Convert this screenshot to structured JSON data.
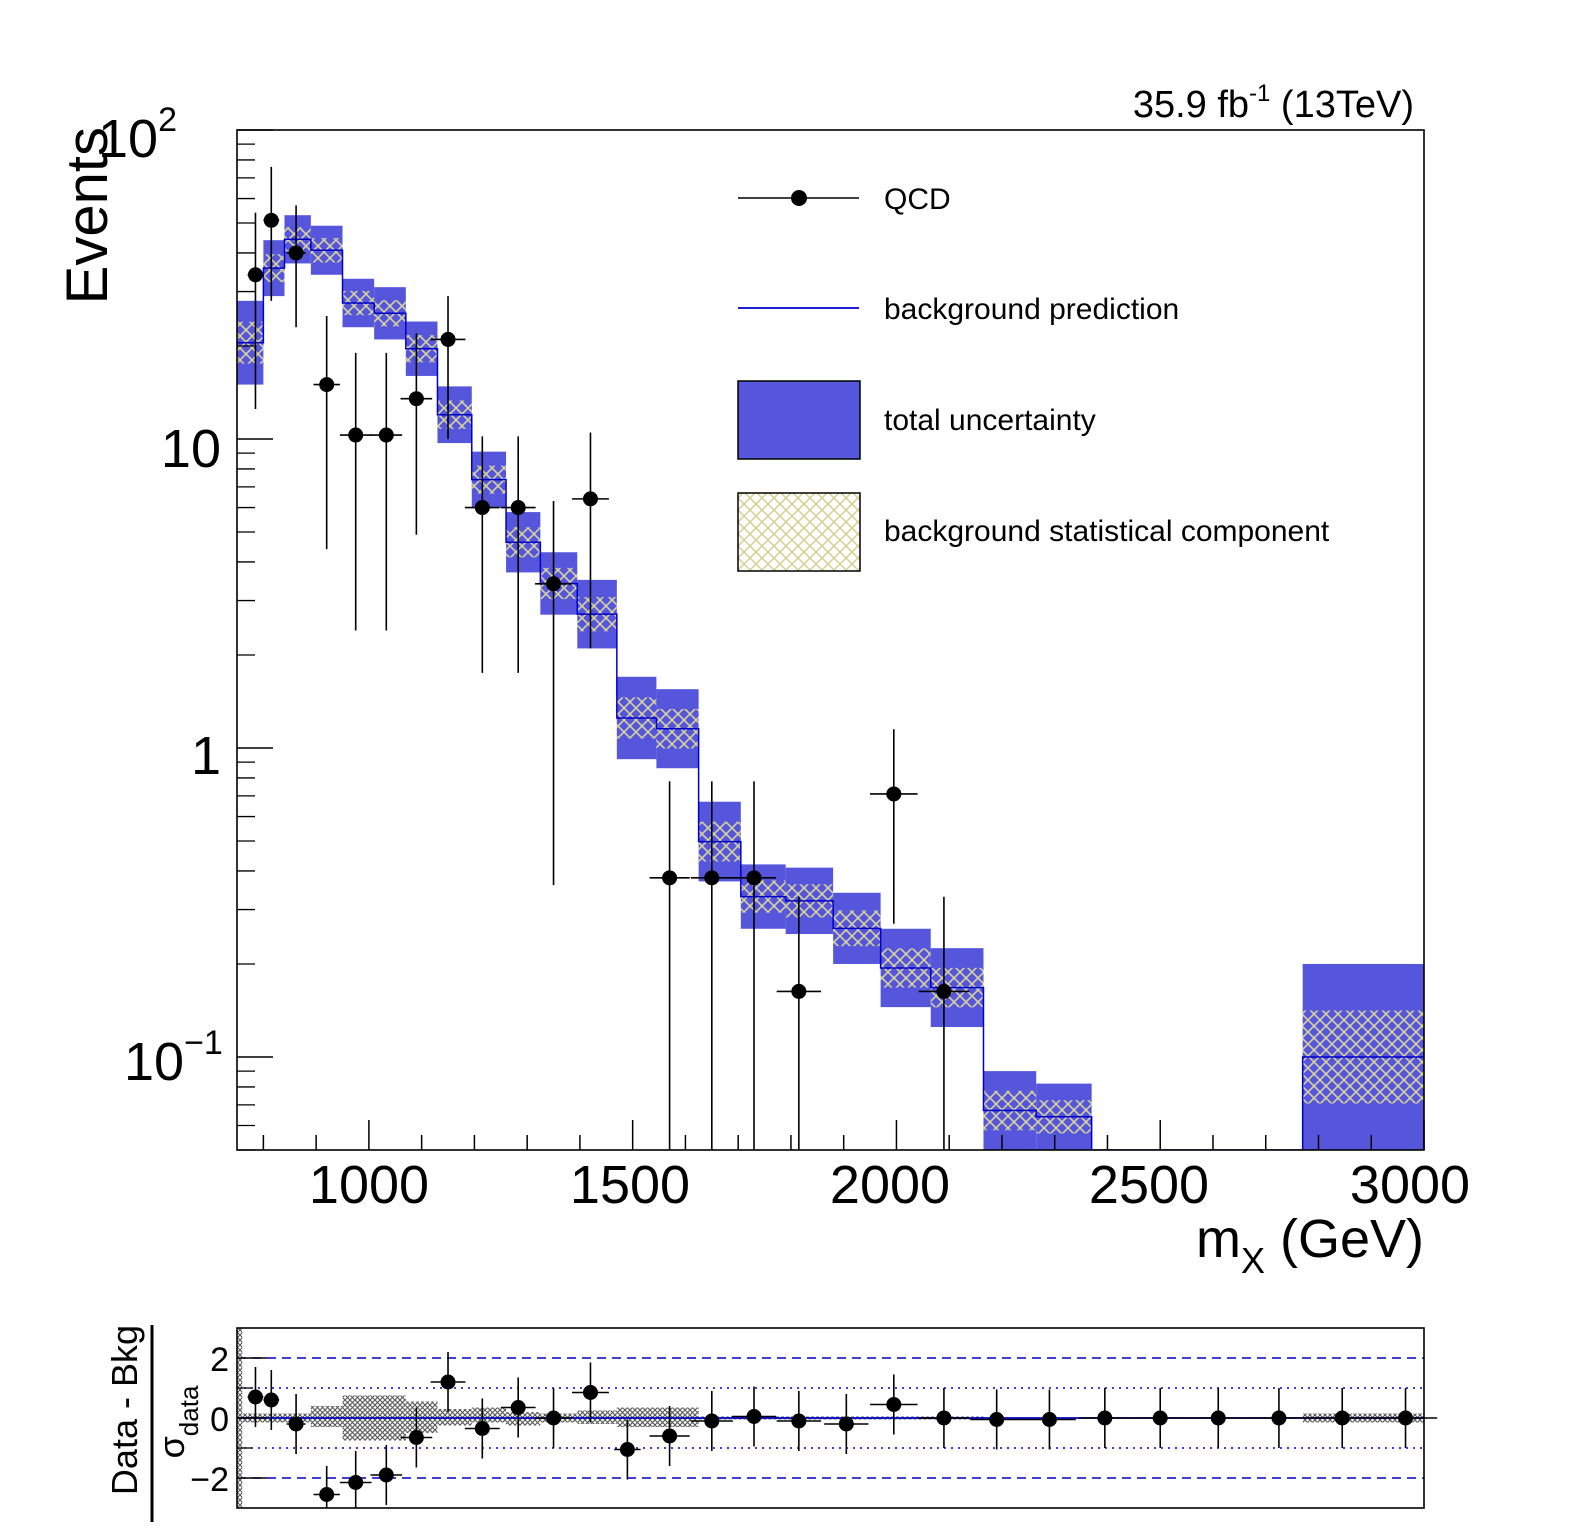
{
  "chart_data": [
    {
      "type": "scatter",
      "lumi_label": "35.9 fb",
      "lumi_sup": "-1",
      "lumi_energy": " (13TeV)",
      "ylabel": "Events",
      "xlabel_main": "m",
      "xlabel_sub": "X",
      "xlabel_unit": " (GeV)",
      "x_log": false,
      "y_log": true,
      "xlim": [
        750,
        3000
      ],
      "ylim": [
        0.05,
        100
      ],
      "x_ticks": [
        "1000",
        "1500",
        "2000",
        "2500",
        "3000"
      ],
      "y_ticks": {
        "t0_base": "10",
        "t0_exp": "−1",
        "t1": "1",
        "t2": "10",
        "t3_base": "10",
        "t3_exp": "2"
      },
      "legend": {
        "qcd": "QCD",
        "prediction": "background prediction",
        "total_unc": "total uncertainty",
        "stat_unc": "background statistical component"
      },
      "colors": {
        "total_unc": "#5656dc",
        "stat_hatch": "#d6d29a",
        "prediction_line": "#0000cc",
        "data": "#000000"
      },
      "background_bins": [
        {
          "x0": 750,
          "x1": 800,
          "lo": 15,
          "hi": 28
        },
        {
          "x0": 800,
          "x1": 840,
          "lo": 29,
          "hi": 44
        },
        {
          "x0": 840,
          "x1": 890,
          "lo": 37,
          "hi": 53
        },
        {
          "x0": 890,
          "x1": 950,
          "lo": 34,
          "hi": 49
        },
        {
          "x0": 950,
          "x1": 1010,
          "lo": 23,
          "hi": 33
        },
        {
          "x0": 1010,
          "x1": 1070,
          "lo": 21,
          "hi": 31
        },
        {
          "x0": 1070,
          "x1": 1130,
          "lo": 16,
          "hi": 24
        },
        {
          "x0": 1130,
          "x1": 1195,
          "lo": 9.7,
          "hi": 14.8
        },
        {
          "x0": 1195,
          "x1": 1260,
          "lo": 6.0,
          "hi": 9.1
        },
        {
          "x0": 1260,
          "x1": 1325,
          "lo": 3.7,
          "hi": 5.8
        },
        {
          "x0": 1325,
          "x1": 1395,
          "lo": 2.7,
          "hi": 4.3
        },
        {
          "x0": 1395,
          "x1": 1470,
          "lo": 2.1,
          "hi": 3.5
        },
        {
          "x0": 1470,
          "x1": 1545,
          "lo": 0.92,
          "hi": 1.7
        },
        {
          "x0": 1545,
          "x1": 1625,
          "lo": 0.86,
          "hi": 1.55
        },
        {
          "x0": 1625,
          "x1": 1705,
          "lo": 0.37,
          "hi": 0.67
        },
        {
          "x0": 1705,
          "x1": 1790,
          "lo": 0.26,
          "hi": 0.42
        },
        {
          "x0": 1790,
          "x1": 1880,
          "lo": 0.25,
          "hi": 0.41
        },
        {
          "x0": 1880,
          "x1": 1970,
          "lo": 0.2,
          "hi": 0.34
        },
        {
          "x0": 1970,
          "x1": 2065,
          "lo": 0.145,
          "hi": 0.26
        },
        {
          "x0": 2065,
          "x1": 2165,
          "lo": 0.125,
          "hi": 0.225
        },
        {
          "x0": 2165,
          "x1": 2265,
          "lo": 0.05,
          "hi": 0.09
        },
        {
          "x0": 2265,
          "x1": 2370,
          "lo": 0.05,
          "hi": 0.082
        },
        {
          "x0": 2370,
          "x1": 2770,
          "lo": 0.05,
          "hi": 0.05
        },
        {
          "x0": 2770,
          "x1": 3000,
          "lo": 0.05,
          "hi": 0.2
        }
      ],
      "data_points": [
        {
          "x": 785,
          "y": 34,
          "ylo": 12.5,
          "yhi": 54,
          "xerr": 15
        },
        {
          "x": 815,
          "y": 51,
          "ylo": 28,
          "yhi": 76,
          "xerr": 15
        },
        {
          "x": 862,
          "y": 40,
          "ylo": 23,
          "yhi": 57,
          "xerr": 18
        },
        {
          "x": 920,
          "y": 15,
          "ylo": 4.4,
          "yhi": 25,
          "xerr": 25
        },
        {
          "x": 975,
          "y": 10.3,
          "ylo": 2.4,
          "yhi": 19,
          "xerr": 30
        },
        {
          "x": 1033,
          "y": 10.3,
          "ylo": 2.4,
          "yhi": 19,
          "xerr": 30
        },
        {
          "x": 1090,
          "y": 13.5,
          "ylo": 4.9,
          "yhi": 22,
          "xerr": 30
        },
        {
          "x": 1150,
          "y": 21,
          "ylo": 10,
          "yhi": 29,
          "xerr": 33
        },
        {
          "x": 1215,
          "y": 6.0,
          "ylo": 1.75,
          "yhi": 10.2,
          "xerr": 33
        },
        {
          "x": 1283,
          "y": 6.0,
          "ylo": 1.75,
          "yhi": 10.2,
          "xerr": 33
        },
        {
          "x": 1350,
          "y": 3.4,
          "ylo": 0.36,
          "yhi": 6.3,
          "xerr": 35
        },
        {
          "x": 1420,
          "y": 6.4,
          "ylo": 2.1,
          "yhi": 10.5,
          "xerr": 35
        },
        {
          "x": 1570,
          "y": 0.38,
          "ylo": 0.05,
          "yhi": 0.78,
          "xerr": 38
        },
        {
          "x": 1650,
          "y": 0.38,
          "ylo": 0.05,
          "yhi": 0.78,
          "xerr": 40
        },
        {
          "x": 1730,
          "y": 0.38,
          "ylo": 0.05,
          "yhi": 0.78,
          "xerr": 42
        },
        {
          "x": 1815,
          "y": 0.163,
          "ylo": 0.05,
          "yhi": 0.33,
          "xerr": 42
        },
        {
          "x": 1995,
          "y": 0.71,
          "ylo": 0.27,
          "yhi": 1.15,
          "xerr": 45
        },
        {
          "x": 2090,
          "y": 0.163,
          "ylo": 0.05,
          "yhi": 0.33,
          "xerr": 48
        }
      ]
    },
    {
      "type": "scatter",
      "ylabel_top": "Data - Bkg",
      "ylabel_bottom_main": "σ",
      "ylabel_bottom_sub": "data",
      "xlim": [
        750,
        3000
      ],
      "ylim": [
        -3,
        3
      ],
      "y_ticks": [
        "−2",
        "0",
        "2"
      ],
      "reference_lines": {
        "dashed": [
          -2,
          2
        ],
        "dotted": [
          -1,
          1
        ]
      },
      "uncertainty_band": [
        {
          "x0": 750,
          "x1": 760,
          "lo": -3,
          "hi": 3
        },
        {
          "x0": 760,
          "x1": 890,
          "lo": -0.15,
          "hi": 0.15
        },
        {
          "x0": 890,
          "x1": 950,
          "lo": -0.3,
          "hi": 0.4
        },
        {
          "x0": 950,
          "x1": 1070,
          "lo": -0.75,
          "hi": 0.75
        },
        {
          "x0": 1070,
          "x1": 1130,
          "lo": -0.5,
          "hi": 0.55
        },
        {
          "x0": 1130,
          "x1": 1195,
          "lo": -0.25,
          "hi": 0.3
        },
        {
          "x0": 1195,
          "x1": 1260,
          "lo": -0.15,
          "hi": 0.35
        },
        {
          "x0": 1260,
          "x1": 1325,
          "lo": -0.25,
          "hi": 0.2
        },
        {
          "x0": 1325,
          "x1": 1395,
          "lo": -0.15,
          "hi": 0.15
        },
        {
          "x0": 1395,
          "x1": 1470,
          "lo": -0.2,
          "hi": 0.25
        },
        {
          "x0": 1470,
          "x1": 1625,
          "lo": -0.3,
          "hi": 0.35
        },
        {
          "x0": 1625,
          "x1": 2165,
          "lo": -0.05,
          "hi": 0.05
        },
        {
          "x0": 2770,
          "x1": 3000,
          "lo": -0.15,
          "hi": 0.15
        }
      ],
      "points": [
        {
          "x": 785,
          "y": 0.7,
          "ylo": -0.3,
          "yhi": 1.7,
          "xerr": 15
        },
        {
          "x": 815,
          "y": 0.6,
          "ylo": -0.4,
          "yhi": 1.6,
          "xerr": 15
        },
        {
          "x": 862,
          "y": -0.2,
          "ylo": -1.2,
          "yhi": 0.8,
          "xerr": 18
        },
        {
          "x": 920,
          "y": -2.55,
          "ylo": -3.0,
          "yhi": -1.6,
          "xerr": 25
        },
        {
          "x": 975,
          "y": -2.15,
          "ylo": -3.0,
          "yhi": -1.1,
          "xerr": 30
        },
        {
          "x": 1033,
          "y": -1.9,
          "ylo": -2.9,
          "yhi": -0.9,
          "xerr": 30
        },
        {
          "x": 1090,
          "y": -0.65,
          "ylo": -1.65,
          "yhi": 0.35,
          "xerr": 30
        },
        {
          "x": 1150,
          "y": 1.2,
          "ylo": 0.2,
          "yhi": 2.2,
          "xerr": 33
        },
        {
          "x": 1215,
          "y": -0.35,
          "ylo": -1.35,
          "yhi": 0.65,
          "xerr": 33
        },
        {
          "x": 1283,
          "y": 0.35,
          "ylo": -0.65,
          "yhi": 1.35,
          "xerr": 33
        },
        {
          "x": 1350,
          "y": 0.0,
          "ylo": -1.0,
          "yhi": 1.0,
          "xerr": 35
        },
        {
          "x": 1420,
          "y": 0.85,
          "ylo": -0.15,
          "yhi": 1.85,
          "xerr": 35
        },
        {
          "x": 1490,
          "y": -1.05,
          "ylo": -2.05,
          "yhi": -0.05,
          "xerr": 25
        },
        {
          "x": 1570,
          "y": -0.6,
          "ylo": -1.6,
          "yhi": 0.4,
          "xerr": 38
        },
        {
          "x": 1650,
          "y": -0.1,
          "ylo": -1.1,
          "yhi": 0.9,
          "xerr": 40
        },
        {
          "x": 1730,
          "y": 0.05,
          "ylo": -0.95,
          "yhi": 1.05,
          "xerr": 42
        },
        {
          "x": 1815,
          "y": -0.1,
          "ylo": -1.1,
          "yhi": 0.9,
          "xerr": 42
        },
        {
          "x": 1905,
          "y": -0.2,
          "ylo": -1.2,
          "yhi": 0.8,
          "xerr": 42
        },
        {
          "x": 1995,
          "y": 0.45,
          "ylo": -0.55,
          "yhi": 1.45,
          "xerr": 45
        },
        {
          "x": 2090,
          "y": 0.0,
          "ylo": -1.0,
          "yhi": 1.0,
          "xerr": 48
        },
        {
          "x": 2190,
          "y": -0.05,
          "ylo": -1.05,
          "yhi": 0.95,
          "xerr": 50
        },
        {
          "x": 2290,
          "y": -0.05,
          "ylo": -1.05,
          "yhi": 0.95,
          "xerr": 50
        },
        {
          "x": 2395,
          "y": 0.0,
          "ylo": -1.0,
          "yhi": 1.0,
          "xerr": 50
        },
        {
          "x": 2500,
          "y": 0.0,
          "ylo": -1.0,
          "yhi": 1.0,
          "xerr": 55
        },
        {
          "x": 2610,
          "y": 0.0,
          "ylo": -1.0,
          "yhi": 1.0,
          "xerr": 55
        },
        {
          "x": 2725,
          "y": 0.0,
          "ylo": -1.0,
          "yhi": 1.0,
          "xerr": 60
        },
        {
          "x": 2845,
          "y": 0.0,
          "ylo": -1.0,
          "yhi": 1.0,
          "xerr": 60
        },
        {
          "x": 2965,
          "y": 0.0,
          "ylo": -1.0,
          "yhi": 1.0,
          "xerr": 60
        }
      ]
    }
  ]
}
